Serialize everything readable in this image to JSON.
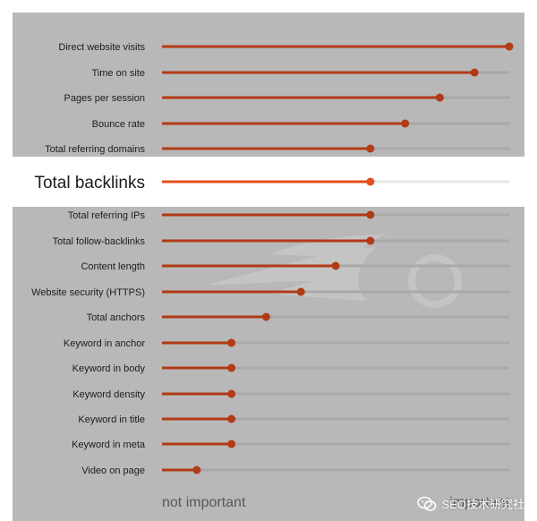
{
  "colors": {
    "panel": "#b8b8b8",
    "frame": "#ffffff",
    "track": "#a9a9a9",
    "track_highlight": "#e6e6e6",
    "bar": "#b23a16",
    "bar_highlight": "#e1501d",
    "dot": "#b23a16",
    "dot_highlight": "#e1501d",
    "label": "#1c1c1c",
    "axis_label": "#595959",
    "highlight_band": "#ffffff",
    "watermark": "#c4c4c4"
  },
  "chart_data": {
    "type": "bar",
    "orientation": "horizontal",
    "categories": [
      "Direct website visits",
      "Time on site",
      "Pages per session",
      "Bounce rate",
      "Total referring domains",
      "Total backlinks",
      "Total referring IPs",
      "Total follow-backlinks",
      "Content length",
      "Website security (HTTPS)",
      "Total anchors",
      "Keyword in anchor",
      "Keyword in body",
      "Keyword density",
      "Keyword in title",
      "Keyword in meta",
      "Video on page"
    ],
    "values": [
      1.0,
      0.9,
      0.8,
      0.7,
      0.6,
      0.6,
      0.6,
      0.6,
      0.5,
      0.4,
      0.3,
      0.2,
      0.2,
      0.2,
      0.2,
      0.2,
      0.1
    ],
    "highlight": "Total backlinks",
    "xlim": [
      0,
      1
    ],
    "axis_labels": {
      "left": "not important",
      "right": "important"
    },
    "grid": false
  },
  "watermark_logo": "semrush-logo",
  "badge": {
    "icon": "wechat-icon",
    "text": "SEO技术研究社"
  }
}
